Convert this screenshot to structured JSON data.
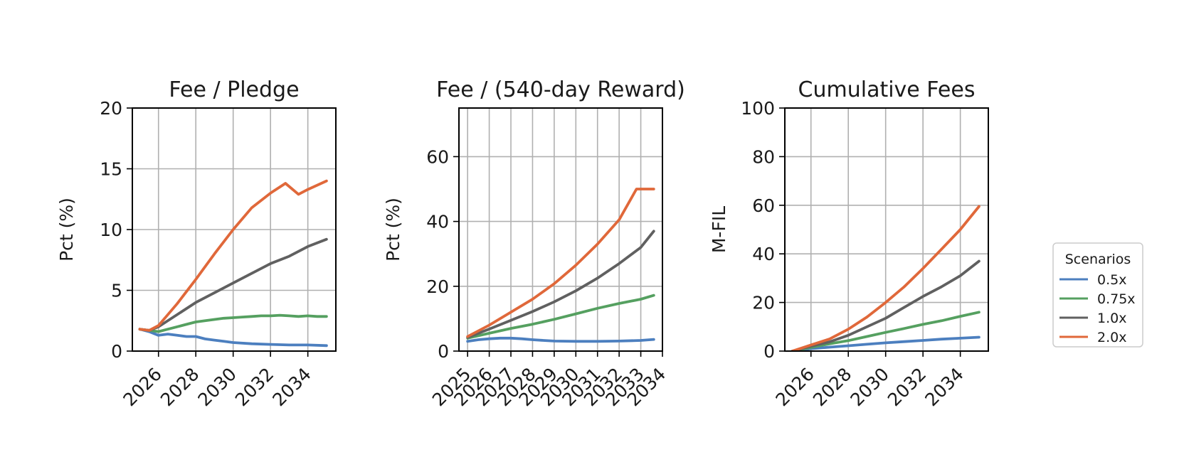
{
  "legend": {
    "title": "Scenarios",
    "placement": "right",
    "entries": [
      {
        "label": "0.5x",
        "color": "#4c7fbf"
      },
      {
        "label": "0.75x",
        "color": "#55a060"
      },
      {
        "label": "1.0x",
        "color": "#606060"
      },
      {
        "label": "2.0x",
        "color": "#e0683a"
      }
    ]
  },
  "chart_data": [
    {
      "type": "line",
      "title": "Fee / Pledge",
      "xlabel": "",
      "ylabel": "Pct (%)",
      "xlim": [
        2024.6,
        2035.5
      ],
      "ylim": [
        0,
        20
      ],
      "xticks": [
        2026,
        2028,
        2030,
        2032,
        2034
      ],
      "yticks": [
        0,
        5,
        10,
        15,
        20
      ],
      "grid": true,
      "series": [
        {
          "name": "0.5x",
          "x": [
            2025,
            2025.5,
            2026,
            2026.5,
            2027,
            2027.5,
            2028,
            2028.5,
            2029,
            2029.5,
            2030,
            2031,
            2032,
            2033,
            2034,
            2035
          ],
          "y": [
            1.8,
            1.6,
            1.3,
            1.4,
            1.3,
            1.2,
            1.2,
            1.0,
            0.9,
            0.8,
            0.7,
            0.6,
            0.55,
            0.5,
            0.5,
            0.45
          ]
        },
        {
          "name": "0.75x",
          "x": [
            2025,
            2025.5,
            2026,
            2026.5,
            2027,
            2027.5,
            2028,
            2028.5,
            2029,
            2029.5,
            2030,
            2030.5,
            2031,
            2031.5,
            2032,
            2032.5,
            2033,
            2033.5,
            2034,
            2034.5,
            2035
          ],
          "y": [
            1.8,
            1.7,
            1.6,
            1.8,
            2.0,
            2.2,
            2.4,
            2.5,
            2.6,
            2.7,
            2.75,
            2.8,
            2.85,
            2.9,
            2.9,
            2.95,
            2.9,
            2.85,
            2.9,
            2.85,
            2.85
          ]
        },
        {
          "name": "1.0x",
          "x": [
            2025,
            2025.5,
            2026,
            2027,
            2028,
            2029,
            2030,
            2031,
            2032,
            2033,
            2034,
            2035
          ],
          "y": [
            1.8,
            1.7,
            2.0,
            3.0,
            4.0,
            4.8,
            5.6,
            6.4,
            7.2,
            7.8,
            8.6,
            9.2
          ]
        },
        {
          "name": "2.0x",
          "x": [
            2025,
            2025.5,
            2026,
            2026.5,
            2027,
            2027.5,
            2028,
            2029,
            2030,
            2031,
            2032,
            2032.8,
            2033.5,
            2034,
            2035
          ],
          "y": [
            1.8,
            1.7,
            2.1,
            3.0,
            3.9,
            4.9,
            5.9,
            8.0,
            10.0,
            11.8,
            13.0,
            13.8,
            12.9,
            13.3,
            14.0
          ]
        }
      ]
    },
    {
      "type": "line",
      "title": "Fee / (540-day Reward)",
      "xlabel": "",
      "ylabel": "Pct (%)",
      "xlim": [
        2024.6,
        2034.0
      ],
      "ylim": [
        0,
        75
      ],
      "xticks": [
        2025,
        2026,
        2027,
        2028,
        2029,
        2030,
        2031,
        2032,
        2033,
        2034
      ],
      "yticks": [
        0,
        20,
        40,
        60
      ],
      "grid": true,
      "series": [
        {
          "name": "0.5x",
          "x": [
            2025,
            2025.5,
            2026,
            2026.5,
            2027,
            2027.5,
            2028,
            2028.5,
            2029,
            2030,
            2031,
            2032,
            2033,
            2033.6
          ],
          "y": [
            3.0,
            3.5,
            3.8,
            4.0,
            4.0,
            3.8,
            3.5,
            3.3,
            3.1,
            3.0,
            3.0,
            3.1,
            3.3,
            3.6
          ]
        },
        {
          "name": "0.75x",
          "x": [
            2025,
            2026,
            2027,
            2028,
            2029,
            2030,
            2031,
            2032,
            2033,
            2033.6
          ],
          "y": [
            4.0,
            5.5,
            7.0,
            8.3,
            9.8,
            11.5,
            13.2,
            14.7,
            16.0,
            17.2
          ]
        },
        {
          "name": "1.0x",
          "x": [
            2025,
            2026,
            2027,
            2028,
            2029,
            2030,
            2031,
            2032,
            2033,
            2033.6
          ],
          "y": [
            4.2,
            6.8,
            9.5,
            12.2,
            15.2,
            18.6,
            22.5,
            27.0,
            32.0,
            37.0
          ]
        },
        {
          "name": "2.0x",
          "x": [
            2025,
            2026,
            2027,
            2028,
            2029,
            2030,
            2031,
            2032,
            2032.8,
            2033.2,
            2033.6
          ],
          "y": [
            4.5,
            8.0,
            12.0,
            16.0,
            20.8,
            26.5,
            33.0,
            40.5,
            50.0,
            50.0,
            50.0
          ]
        }
      ]
    },
    {
      "type": "line",
      "title": "Cumulative Fees",
      "xlabel": "",
      "ylabel": "M-FIL",
      "xlim": [
        2024.6,
        2035.5
      ],
      "ylim": [
        0,
        100
      ],
      "xticks": [
        2026,
        2028,
        2030,
        2032,
        2034
      ],
      "yticks": [
        0,
        20,
        40,
        60,
        80,
        100
      ],
      "grid": true,
      "series": [
        {
          "name": "0.5x",
          "x": [
            2025,
            2026,
            2027,
            2028,
            2029,
            2030,
            2031,
            2032,
            2033,
            2034,
            2035
          ],
          "y": [
            0,
            1.0,
            1.6,
            2.2,
            2.8,
            3.4,
            3.9,
            4.4,
            4.9,
            5.3,
            5.7
          ]
        },
        {
          "name": "0.75x",
          "x": [
            2025,
            2026,
            2027,
            2028,
            2029,
            2030,
            2031,
            2032,
            2033,
            2034,
            2035
          ],
          "y": [
            0,
            1.5,
            3.0,
            4.3,
            6.0,
            7.7,
            9.3,
            11.0,
            12.5,
            14.3,
            16.0
          ]
        },
        {
          "name": "1.0x",
          "x": [
            2025,
            2026,
            2027,
            2028,
            2029,
            2030,
            2031,
            2032,
            2033,
            2034,
            2035
          ],
          "y": [
            0,
            2.0,
            3.8,
            6.5,
            10.0,
            13.5,
            18.0,
            22.5,
            26.5,
            31.0,
            37.0
          ]
        },
        {
          "name": "2.0x",
          "x": [
            2025,
            2026,
            2027,
            2028,
            2029,
            2030,
            2031,
            2032,
            2033,
            2034,
            2035
          ],
          "y": [
            0,
            2.5,
            5.0,
            9.0,
            14.0,
            20.0,
            26.5,
            34.0,
            42.0,
            50.0,
            59.5
          ]
        }
      ]
    }
  ]
}
